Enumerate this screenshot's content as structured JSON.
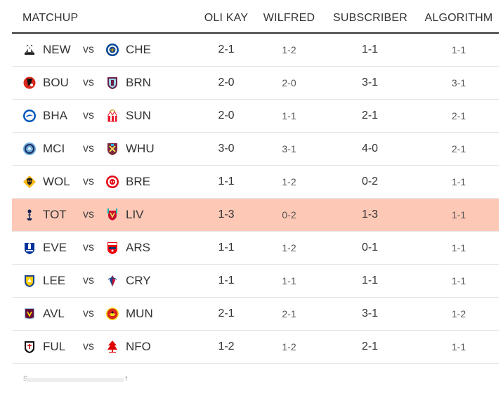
{
  "headers": {
    "matchup": "MATCHUP",
    "oli_kay": "OLI KAY",
    "wilfred": "WILFRED",
    "subscriber": "SUBSCRIBER",
    "algorithm": "ALGORITHM"
  },
  "vs_label": "vs",
  "highlight_color": "#fdc9b6",
  "rows": [
    {
      "home": "NEW",
      "away": "CHE",
      "home_icon": "newcastle-crest-icon",
      "away_icon": "chelsea-crest-icon",
      "oli": "2-1",
      "wilfred": "1-2",
      "subscriber": "1-1",
      "algorithm": "1-1"
    },
    {
      "home": "BOU",
      "away": "BRN",
      "home_icon": "bournemouth-crest-icon",
      "away_icon": "burnley-crest-icon",
      "oli": "2-0",
      "wilfred": "2-0",
      "subscriber": "3-1",
      "algorithm": "3-1"
    },
    {
      "home": "BHA",
      "away": "SUN",
      "home_icon": "brighton-crest-icon",
      "away_icon": "sunderland-crest-icon",
      "oli": "2-0",
      "wilfred": "1-1",
      "subscriber": "2-1",
      "algorithm": "2-1"
    },
    {
      "home": "MCI",
      "away": "WHU",
      "home_icon": "man-city-crest-icon",
      "away_icon": "west-ham-crest-icon",
      "oli": "3-0",
      "wilfred": "3-1",
      "subscriber": "4-0",
      "algorithm": "2-1"
    },
    {
      "home": "WOL",
      "away": "BRE",
      "home_icon": "wolves-crest-icon",
      "away_icon": "brentford-crest-icon",
      "oli": "1-1",
      "wilfred": "1-2",
      "subscriber": "0-2",
      "algorithm": "1-1"
    },
    {
      "home": "TOT",
      "away": "LIV",
      "home_icon": "tottenham-crest-icon",
      "away_icon": "liverpool-crest-icon",
      "oli": "1-3",
      "wilfred": "0-2",
      "subscriber": "1-3",
      "algorithm": "1-1",
      "highlighted": true
    },
    {
      "home": "EVE",
      "away": "ARS",
      "home_icon": "everton-crest-icon",
      "away_icon": "arsenal-crest-icon",
      "oli": "1-1",
      "wilfred": "1-2",
      "subscriber": "0-1",
      "algorithm": "1-1"
    },
    {
      "home": "LEE",
      "away": "CRY",
      "home_icon": "leeds-crest-icon",
      "away_icon": "crystal-palace-crest-icon",
      "oli": "1-1",
      "wilfred": "1-1",
      "subscriber": "1-1",
      "algorithm": "1-1"
    },
    {
      "home": "AVL",
      "away": "MUN",
      "home_icon": "aston-villa-crest-icon",
      "away_icon": "man-united-crest-icon",
      "oli": "2-1",
      "wilfred": "2-1",
      "subscriber": "3-1",
      "algorithm": "1-2"
    },
    {
      "home": "FUL",
      "away": "NFO",
      "home_icon": "fulham-crest-icon",
      "away_icon": "nottingham-forest-crest-icon",
      "oli": "1-2",
      "wilfred": "1-2",
      "subscriber": "2-1",
      "algorithm": "1-1"
    }
  ],
  "footer": {
    "start": "S",
    "end": "f"
  }
}
